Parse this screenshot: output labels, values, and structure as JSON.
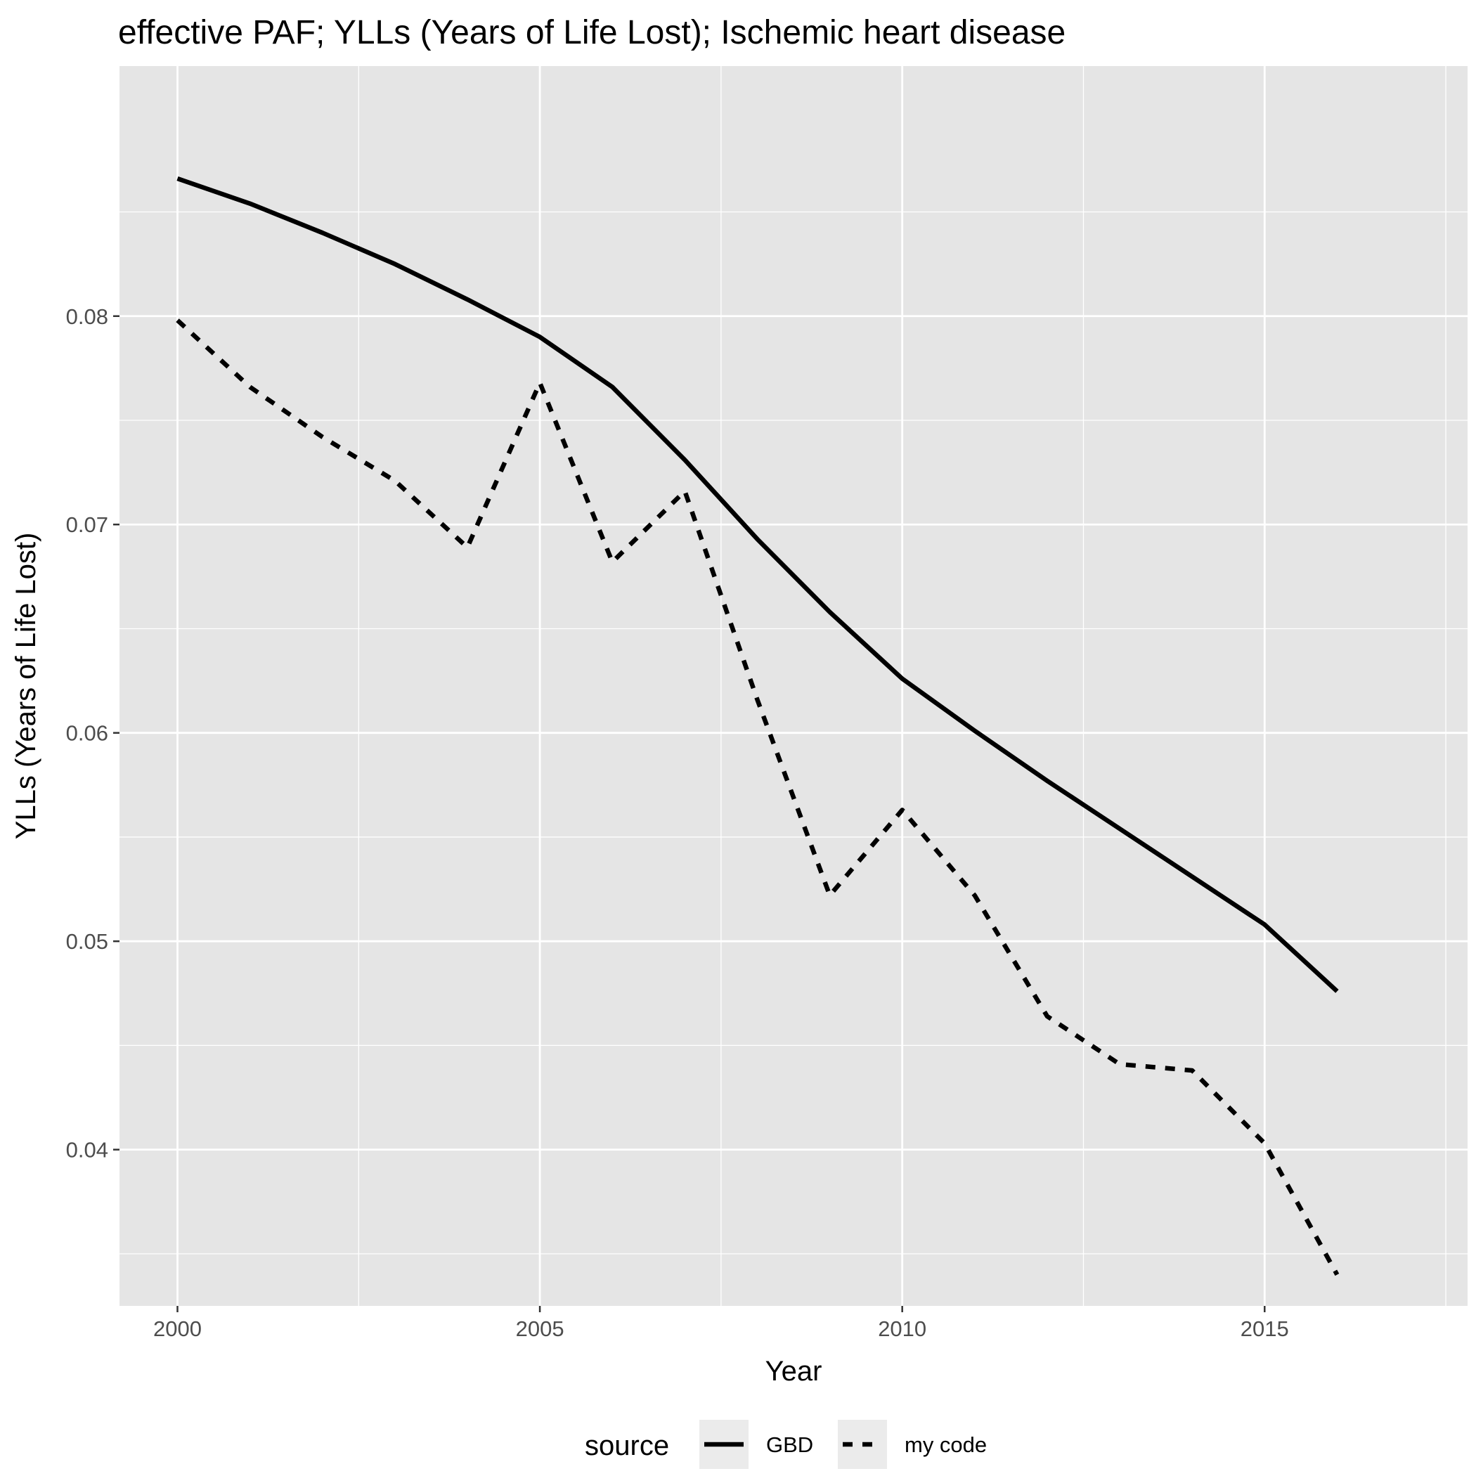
{
  "chart_data": {
    "type": "line",
    "title": "effective PAF; YLLs (Years of Life Lost); Ischemic heart disease",
    "xlabel": "Year",
    "ylabel": "YLLs (Years of Life Lost)",
    "xlim": [
      1999.2,
      2017.8
    ],
    "ylim": [
      0.0325,
      0.092
    ],
    "x_ticks": [
      2000,
      2005,
      2010,
      2015
    ],
    "x_tick_labels": [
      "2000",
      "2005",
      "2010",
      "2015"
    ],
    "y_ticks": [
      0.04,
      0.05,
      0.06,
      0.07,
      0.08
    ],
    "y_tick_labels": [
      "0.04",
      "0.05",
      "0.06",
      "0.07",
      "0.08"
    ],
    "grid": true,
    "background_color": "#e5e5e5",
    "grid_color": "#ffffff",
    "line_color": "#000000",
    "legend": {
      "title": "source",
      "position": "bottom"
    },
    "x": [
      2000,
      2001,
      2002,
      2003,
      2004,
      2005,
      2006,
      2007,
      2008,
      2009,
      2010,
      2011,
      2012,
      2013,
      2014,
      2015,
      2016
    ],
    "series": [
      {
        "name": "GBD",
        "linetype": "solid",
        "values": [
          0.0866,
          0.0854,
          0.084,
          0.0825,
          0.0808,
          0.079,
          0.0766,
          0.0731,
          0.0693,
          0.0658,
          0.0626,
          0.0601,
          0.0577,
          0.0554,
          0.0531,
          0.0508,
          0.0476
        ]
      },
      {
        "name": "my code",
        "linetype": "dashed",
        "values": [
          0.0798,
          0.0766,
          0.0742,
          0.0721,
          0.0689,
          0.0768,
          0.0682,
          0.0716,
          0.0616,
          0.0522,
          0.0563,
          0.0522,
          0.0464,
          0.0441,
          0.0438,
          0.0403,
          0.034
        ]
      }
    ]
  }
}
